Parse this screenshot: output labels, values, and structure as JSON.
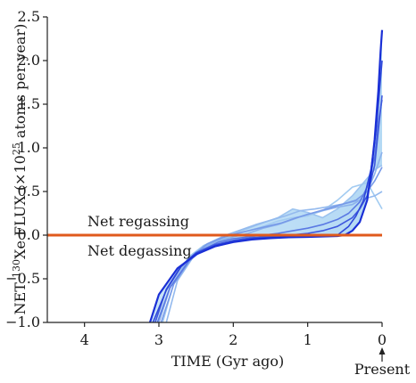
{
  "chart_data": {
    "type": "line",
    "xlabel": "TIME (Gyr ago)",
    "ylabel_parts": [
      "NET ",
      "130",
      "Xe FLUX (",
      "×",
      "10",
      "25",
      " atoms per year)"
    ],
    "xlim": [
      4.5,
      0
    ],
    "ylim": [
      -1.0,
      2.5
    ],
    "x_ticks": [
      4,
      3,
      2,
      1,
      0
    ],
    "x_tick_labels": [
      "4",
      "3",
      "2",
      "1",
      "0"
    ],
    "y_ticks": [
      -1.0,
      -0.5,
      0.0,
      0.5,
      1.0,
      1.5,
      2.0,
      2.5
    ],
    "y_tick_labels": [
      "−1.0",
      "−0.5",
      "0.0",
      "0.5",
      "1.0",
      "1.5",
      "2.0",
      "2.5"
    ],
    "grid": false,
    "zero_line_color": "#e05a1c",
    "series_colors": {
      "light": "#a9d3f2",
      "dark": "#1a2fd6"
    },
    "annotations": {
      "regassing": "Net regassing",
      "degassing": "Net degassing",
      "present": "Present"
    },
    "series": [
      {
        "x": [
          3.12,
          3.0,
          2.75,
          2.5,
          2.25,
          2.0,
          1.75,
          1.5,
          1.25,
          1.0,
          0.8,
          0.6,
          0.5,
          0.4,
          0.3,
          0.2,
          0.15,
          0.1,
          0.05,
          0.02,
          0.0
        ],
        "y": [
          -1.0,
          -0.68,
          -0.38,
          -0.22,
          -0.13,
          -0.08,
          -0.05,
          -0.035,
          -0.025,
          -0.02,
          -0.015,
          -0.01,
          0.0,
          0.05,
          0.15,
          0.4,
          0.7,
          1.1,
          1.65,
          2.1,
          2.35
        ]
      },
      {
        "x": [
          3.05,
          2.9,
          2.7,
          2.5,
          2.25,
          2.0,
          1.75,
          1.5,
          1.25,
          1.0,
          0.8,
          0.6,
          0.5,
          0.4,
          0.3,
          0.2,
          0.1,
          0.05,
          0.0
        ],
        "y": [
          -1.0,
          -0.62,
          -0.35,
          -0.2,
          -0.11,
          -0.06,
          -0.03,
          -0.015,
          0.0,
          0.02,
          0.05,
          0.1,
          0.15,
          0.2,
          0.3,
          0.45,
          0.8,
          1.2,
          1.6
        ]
      },
      {
        "x": [
          3.0,
          2.85,
          2.6,
          2.4,
          2.2,
          2.0,
          1.8,
          1.6,
          1.4,
          1.2,
          1.0,
          0.8,
          0.6,
          0.4,
          0.3,
          0.2,
          0.1,
          0.0
        ],
        "y": [
          -1.0,
          -0.6,
          -0.28,
          -0.14,
          -0.06,
          -0.02,
          0.02,
          0.08,
          0.12,
          0.18,
          0.24,
          0.28,
          0.32,
          0.35,
          0.4,
          0.5,
          0.7,
          0.95
        ]
      },
      {
        "x": [
          2.95,
          2.8,
          2.6,
          2.4,
          2.2,
          2.0,
          1.8,
          1.6,
          1.4,
          1.2,
          1.0,
          0.8,
          0.6,
          0.4,
          0.2,
          0.1,
          0.0
        ],
        "y": [
          -1.0,
          -0.55,
          -0.25,
          -0.12,
          -0.05,
          0.0,
          0.05,
          0.1,
          0.16,
          0.2,
          0.22,
          0.28,
          0.4,
          0.55,
          0.6,
          0.45,
          0.3
        ]
      },
      {
        "x": [
          3.0,
          2.85,
          2.6,
          2.4,
          2.2,
          2.0,
          1.8,
          1.6,
          1.4,
          1.2,
          1.0,
          0.8,
          0.6,
          0.4,
          0.2,
          0.1,
          0.0
        ],
        "y": [
          -1.0,
          -0.6,
          -0.27,
          -0.12,
          -0.04,
          0.02,
          0.08,
          0.14,
          0.2,
          0.3,
          0.26,
          0.2,
          0.3,
          0.45,
          0.65,
          0.75,
          0.8
        ]
      },
      {
        "x": [
          2.9,
          2.75,
          2.5,
          2.3,
          2.1,
          1.9,
          1.7,
          1.5,
          1.3,
          1.1,
          0.9,
          0.7,
          0.5,
          0.3,
          0.1,
          0.0
        ],
        "y": [
          -1.0,
          -0.52,
          -0.2,
          -0.08,
          0.0,
          0.06,
          0.12,
          0.17,
          0.22,
          0.28,
          0.3,
          0.33,
          0.36,
          0.4,
          0.45,
          0.5
        ]
      },
      {
        "x": [
          3.08,
          2.9,
          2.7,
          2.5,
          2.25,
          2.0,
          1.75,
          1.5,
          1.25,
          1.0,
          0.8,
          0.6,
          0.45,
          0.35,
          0.25,
          0.15,
          0.08,
          0.03,
          0.0
        ],
        "y": [
          -1.0,
          -0.63,
          -0.36,
          -0.21,
          -0.12,
          -0.07,
          -0.04,
          -0.025,
          -0.015,
          -0.01,
          -0.005,
          0.0,
          0.1,
          0.22,
          0.4,
          0.75,
          1.2,
          1.7,
          2.0
        ]
      },
      {
        "x": [
          3.02,
          2.85,
          2.6,
          2.4,
          2.2,
          2.0,
          1.8,
          1.6,
          1.4,
          1.2,
          1.0,
          0.8,
          0.6,
          0.45,
          0.3,
          0.2,
          0.1,
          0.05,
          0.0
        ],
        "y": [
          -1.0,
          -0.6,
          -0.3,
          -0.16,
          -0.08,
          -0.04,
          -0.02,
          0.0,
          0.02,
          0.05,
          0.08,
          0.12,
          0.18,
          0.25,
          0.38,
          0.55,
          0.9,
          1.3,
          1.55
        ]
      },
      {
        "x": [
          2.97,
          2.8,
          2.55,
          2.35,
          2.15,
          1.95,
          1.75,
          1.55,
          1.35,
          1.15,
          0.95,
          0.75,
          0.55,
          0.35,
          0.2,
          0.1,
          0.0
        ],
        "y": [
          -1.0,
          -0.56,
          -0.24,
          -0.1,
          -0.03,
          0.02,
          0.06,
          0.1,
          0.14,
          0.2,
          0.25,
          0.3,
          0.35,
          0.4,
          0.5,
          0.62,
          0.78
        ]
      }
    ]
  }
}
